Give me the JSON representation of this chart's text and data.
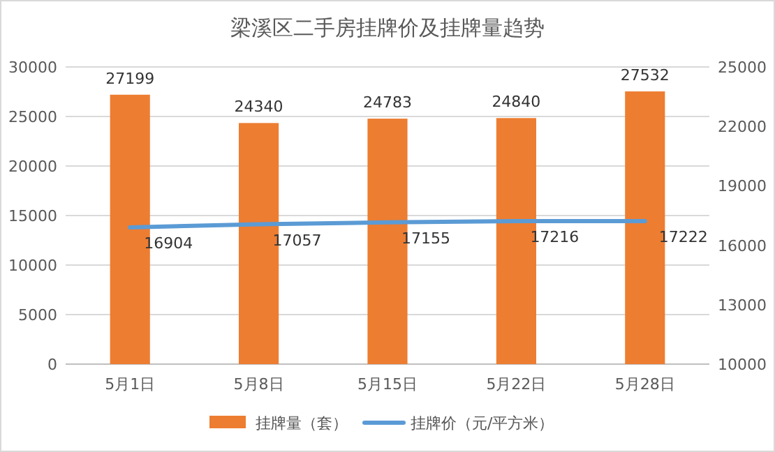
{
  "chart_data": {
    "type": "bar",
    "title": "梁溪区二手房挂牌价及挂牌量趋势",
    "categories": [
      "5月1日",
      "5月8日",
      "5月15日",
      "5月22日",
      "5月28日"
    ],
    "series": [
      {
        "name": "挂牌量（套）",
        "color": "#ed7d31",
        "values": [
          27199,
          24340,
          24783,
          24840,
          27532
        ]
      },
      {
        "name": "挂牌价（元/平方米）",
        "type": "line",
        "axis": "y2",
        "color": "#5b9bd5",
        "values": [
          16904,
          17057,
          17155,
          17216,
          17222
        ]
      }
    ],
    "ylim": [
      0,
      30000
    ],
    "yticks": [
      0,
      5000,
      10000,
      15000,
      20000,
      25000,
      30000
    ],
    "y2lim": [
      10000,
      25000
    ],
    "y2ticks": [
      10000,
      13000,
      16000,
      19000,
      22000,
      25000
    ],
    "grid": "y",
    "legend": "bottom",
    "data_labels": true,
    "marker": "none"
  }
}
